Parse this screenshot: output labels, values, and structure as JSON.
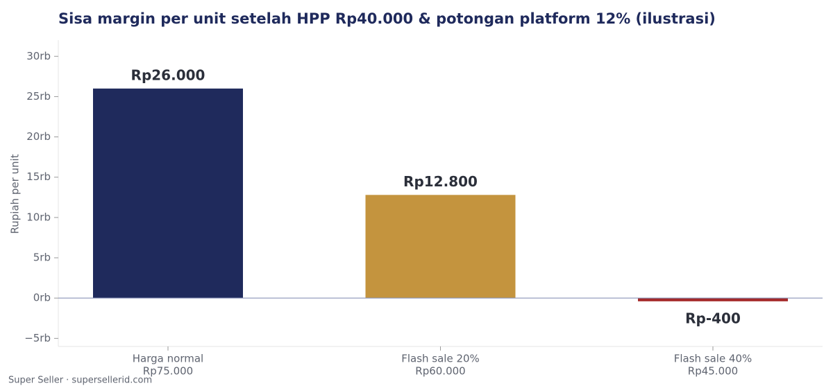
{
  "chart_data": {
    "type": "bar",
    "title": "Sisa margin per unit setelah HPP Rp40.000 & potongan platform 12% (ilustrasi)",
    "y_label": "Rupiah per unit",
    "categories": [
      [
        "Harga normal",
        "Rp75.000"
      ],
      [
        "Flash sale 20%",
        "Rp60.000"
      ],
      [
        "Flash sale 40%",
        "Rp45.000"
      ]
    ],
    "values": [
      26000,
      12800,
      -400
    ],
    "value_labels": [
      "Rp26.000",
      "Rp12.800",
      "Rp-400"
    ],
    "colors": [
      "#1f2a5c",
      "#c4943e",
      "#a52a2a"
    ],
    "ylim": [
      -6000,
      32000
    ],
    "yticks": [
      {
        "value": -5000,
        "label": "−5rb"
      },
      {
        "value": 0,
        "label": "0rb"
      },
      {
        "value": 5000,
        "label": "5rb"
      },
      {
        "value": 10000,
        "label": "10rb"
      },
      {
        "value": 15000,
        "label": "15rb"
      },
      {
        "value": 20000,
        "label": "20rb"
      },
      {
        "value": 25000,
        "label": "25rb"
      },
      {
        "value": 30000,
        "label": "30rb"
      }
    ],
    "footer": "Super Seller · supersellerid.com"
  }
}
